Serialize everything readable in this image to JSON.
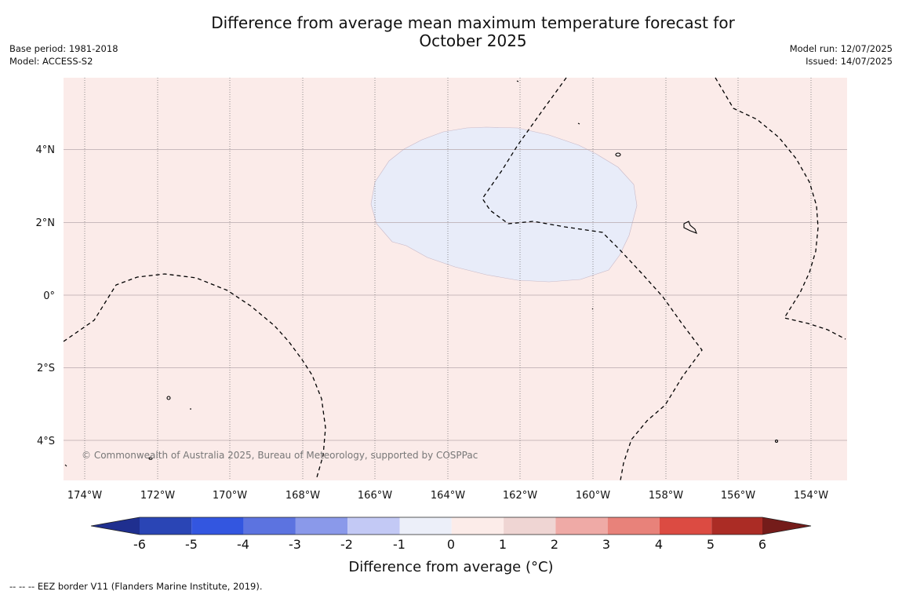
{
  "title": {
    "line1": "Difference from average mean maximum temperature forecast for",
    "line2": "October 2025"
  },
  "meta": {
    "base_period": "Base period: 1981-2018",
    "model": "Model: ACCESS-S2",
    "model_run": "Model run: 12/07/2025",
    "issued": "Issued: 14/07/2025"
  },
  "map": {
    "background_color": "#fbebe9",
    "anomaly_patch_color": "#e8ecf9",
    "lat_ticks": [
      "4°N",
      "2°N",
      "0°",
      "2°S",
      "4°S"
    ],
    "lon_ticks": [
      "174°W",
      "172°W",
      "170°W",
      "168°W",
      "166°W",
      "164°W",
      "162°W",
      "160°W",
      "158°W",
      "156°W",
      "154°W"
    ],
    "copyright": "© Commonwealth of Australia 2025, Bureau of Meteorology, supported by COSPPac"
  },
  "colorbar": {
    "label": "Difference from average (°C)",
    "ticks": [
      "-6",
      "-5",
      "-4",
      "-3",
      "-2",
      "-1",
      "0",
      "1",
      "2",
      "3",
      "4",
      "5",
      "6"
    ],
    "colors": [
      "#1f2f8f",
      "#2a45b5",
      "#3356e0",
      "#5c73e0",
      "#8a99ea",
      "#c3c9f5",
      "#eceff9",
      "#fcece9",
      "#efd5d3",
      "#efaaa6",
      "#e8827a",
      "#dc4b42",
      "#ab2c25",
      "#741c1a"
    ]
  },
  "footer": {
    "legend": "--  --  -- EEZ border V11 (Flanders Marine Institute, 2019)."
  }
}
